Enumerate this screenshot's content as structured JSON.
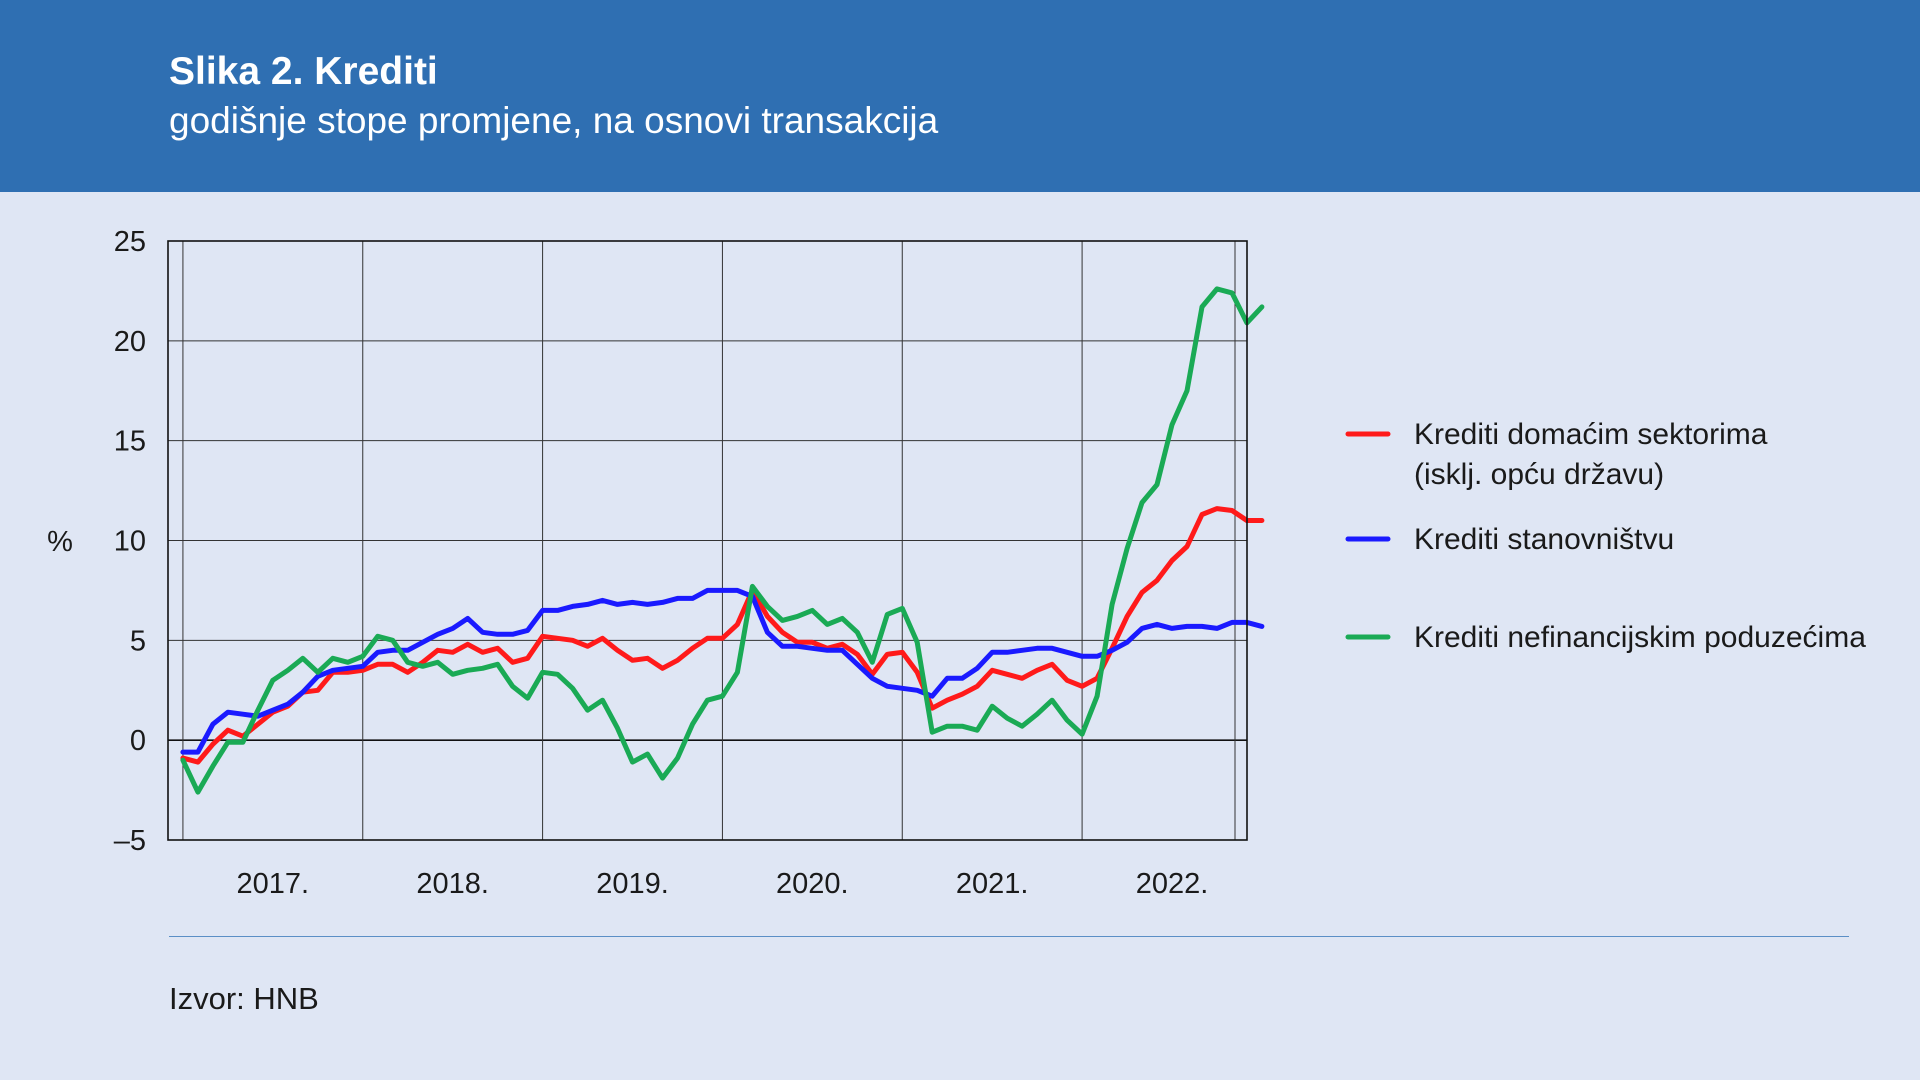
{
  "header": {
    "title": "Slika 2. Krediti",
    "subtitle": "godišnje stope promjene, na osnovi transakcija"
  },
  "source": "Izvor: HNB",
  "colors": {
    "header_bg": "#2f6fb2",
    "page_bg": "#dfe6f4",
    "red": "#ff1a1a",
    "blue": "#1a1aff",
    "green": "#1aaa55"
  },
  "chart_data": {
    "type": "line",
    "ylabel": "%",
    "ylim": [
      -5,
      25
    ],
    "yticks": [
      -5,
      0,
      5,
      10,
      15,
      20,
      25
    ],
    "ytick_labels": [
      "–5",
      "0",
      "5",
      "10",
      "15",
      "20",
      "25"
    ],
    "xlim": [
      2016.917,
      2022.917
    ],
    "xtick_labels": [
      "2017.",
      "2018.",
      "2019.",
      "2020.",
      "2021.",
      "2022."
    ],
    "year_grid": [
      2017,
      2018,
      2019,
      2020,
      2021,
      2022
    ],
    "grid": true,
    "legend_placement": "right",
    "legend": [
      {
        "color": "red",
        "lines": [
          "Krediti domaćim sektorima",
          "(isklj. opću državu)"
        ]
      },
      {
        "color": "blue",
        "lines": [
          "Krediti stanovništvu"
        ]
      },
      {
        "color": "green",
        "lines": [
          "Krediti nefinancijskim poduzećima"
        ]
      }
    ],
    "x_start": "2017-01",
    "series": [
      {
        "color": "red",
        "values": [
          -0.9,
          -1.1,
          -0.2,
          0.5,
          0.2,
          0.8,
          1.4,
          1.7,
          2.4,
          2.5,
          3.4,
          3.4,
          3.5,
          3.8,
          3.8,
          3.4,
          3.9,
          4.5,
          4.4,
          4.8,
          4.4,
          4.6,
          3.9,
          4.1,
          5.2,
          5.1,
          5.0,
          4.7,
          5.1,
          4.5,
          4.0,
          4.1,
          3.6,
          4.0,
          4.6,
          5.1,
          5.1,
          5.8,
          7.5,
          6.2,
          5.4,
          4.9,
          4.9,
          4.6,
          4.8,
          4.3,
          3.3,
          4.3,
          4.4,
          3.4,
          1.6,
          2.0,
          2.3,
          2.7,
          3.5,
          3.3,
          3.1,
          3.5,
          3.8,
          3.0,
          2.7,
          3.1,
          4.6,
          6.2,
          7.4,
          8.0,
          9.0,
          9.7,
          11.3,
          11.6,
          11.5,
          11.0,
          11.0
        ]
      },
      {
        "color": "blue",
        "values": [
          -0.6,
          -0.6,
          0.8,
          1.4,
          1.3,
          1.2,
          1.5,
          1.8,
          2.4,
          3.2,
          3.5,
          3.6,
          3.7,
          4.4,
          4.5,
          4.5,
          4.9,
          5.3,
          5.6,
          6.1,
          5.4,
          5.3,
          5.3,
          5.5,
          6.5,
          6.5,
          6.7,
          6.8,
          7.0,
          6.8,
          6.9,
          6.8,
          6.9,
          7.1,
          7.1,
          7.5,
          7.5,
          7.5,
          7.2,
          5.4,
          4.7,
          4.7,
          4.6,
          4.5,
          4.5,
          3.8,
          3.1,
          2.7,
          2.6,
          2.5,
          2.2,
          3.1,
          3.1,
          3.6,
          4.4,
          4.4,
          4.5,
          4.6,
          4.6,
          4.4,
          4.2,
          4.2,
          4.5,
          4.9,
          5.6,
          5.8,
          5.6,
          5.7,
          5.7,
          5.6,
          5.9,
          5.9,
          5.7
        ]
      },
      {
        "color": "green",
        "values": [
          -1.0,
          -2.6,
          -1.3,
          -0.1,
          -0.1,
          1.5,
          3.0,
          3.5,
          4.1,
          3.4,
          4.1,
          3.9,
          4.2,
          5.2,
          5.0,
          3.9,
          3.7,
          3.9,
          3.3,
          3.5,
          3.6,
          3.8,
          2.7,
          2.1,
          3.4,
          3.3,
          2.6,
          1.5,
          2.0,
          0.6,
          -1.1,
          -0.7,
          -1.9,
          -0.9,
          0.8,
          2.0,
          2.2,
          3.4,
          7.7,
          6.7,
          6.0,
          6.2,
          6.5,
          5.8,
          6.1,
          5.4,
          3.9,
          6.3,
          6.6,
          4.9,
          0.4,
          0.7,
          0.7,
          0.5,
          1.7,
          1.1,
          0.7,
          1.3,
          2.0,
          1.0,
          0.3,
          2.2,
          6.8,
          9.6,
          11.9,
          12.8,
          15.8,
          17.5,
          21.7,
          22.6,
          22.4,
          20.9,
          21.7
        ]
      }
    ]
  }
}
